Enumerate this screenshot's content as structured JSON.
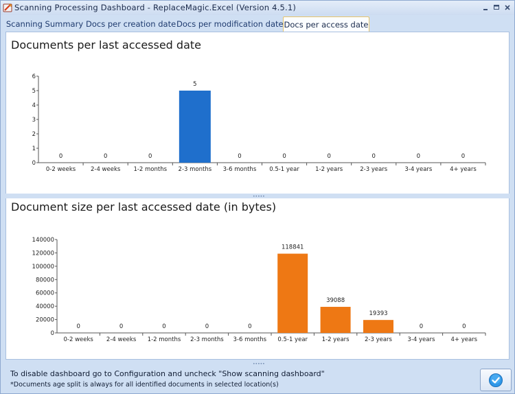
{
  "window": {
    "title": "Scanning Processing Dashboard - ReplaceMagic.Excel (Version 4.5.1)",
    "icon": "replacemagic-app-icon",
    "controls": [
      "minimize-icon",
      "maximize-icon",
      "close-icon"
    ]
  },
  "tabs": [
    {
      "label": "Scanning Summary",
      "active": false
    },
    {
      "label": "Docs per creation date",
      "active": false
    },
    {
      "label": "Docs per modification date",
      "active": false
    },
    {
      "label": "Docs per access date",
      "active": true
    }
  ],
  "chart_data": [
    {
      "type": "bar",
      "title": "Documents per last accessed date",
      "categories": [
        "0-2 weeks",
        "2-4 weeks",
        "1-2 months",
        "2-3 months",
        "3-6 months",
        "0.5-1 year",
        "1-2 years",
        "2-3 years",
        "3-4 years",
        "4+ years"
      ],
      "values": [
        0,
        0,
        0,
        5,
        0,
        0,
        0,
        0,
        0,
        0
      ],
      "data_labels": [
        "0",
        "0",
        "0",
        "5",
        "0",
        "0",
        "0",
        "0",
        "0",
        "0"
      ],
      "yticks": [
        "0",
        "1",
        "2",
        "3",
        "4",
        "5",
        "6"
      ],
      "ylim": [
        0,
        6
      ],
      "bar_color": "#1f6fcc",
      "grid": false
    },
    {
      "type": "bar",
      "title": "Document size per last accessed date (in bytes)",
      "categories": [
        "0-2 weeks",
        "2-4 weeks",
        "1-2 months",
        "2-3 months",
        "3-6 months",
        "0.5-1 year",
        "1-2 years",
        "2-3 years",
        "3-4 years",
        "4+ years"
      ],
      "values": [
        0,
        0,
        0,
        0,
        0,
        118841,
        39088,
        19393,
        0,
        0
      ],
      "data_labels": [
        "0",
        "0",
        "0",
        "0",
        "0",
        "118841",
        "39088",
        "19393",
        "0",
        "0"
      ],
      "yticks": [
        "0",
        "20000",
        "40000",
        "60000",
        "80000",
        "100000",
        "120000",
        "140000"
      ],
      "ylim": [
        0,
        140000
      ],
      "bar_color": "#ee7814",
      "grid": false
    }
  ],
  "status": {
    "line1": "To disable dashboard go to Configuration and uncheck \"Show scanning dashboard\"",
    "line2": "*Documents age split is always for all identified documents in selected location(s)",
    "ok_icon": "checkmark-icon"
  }
}
